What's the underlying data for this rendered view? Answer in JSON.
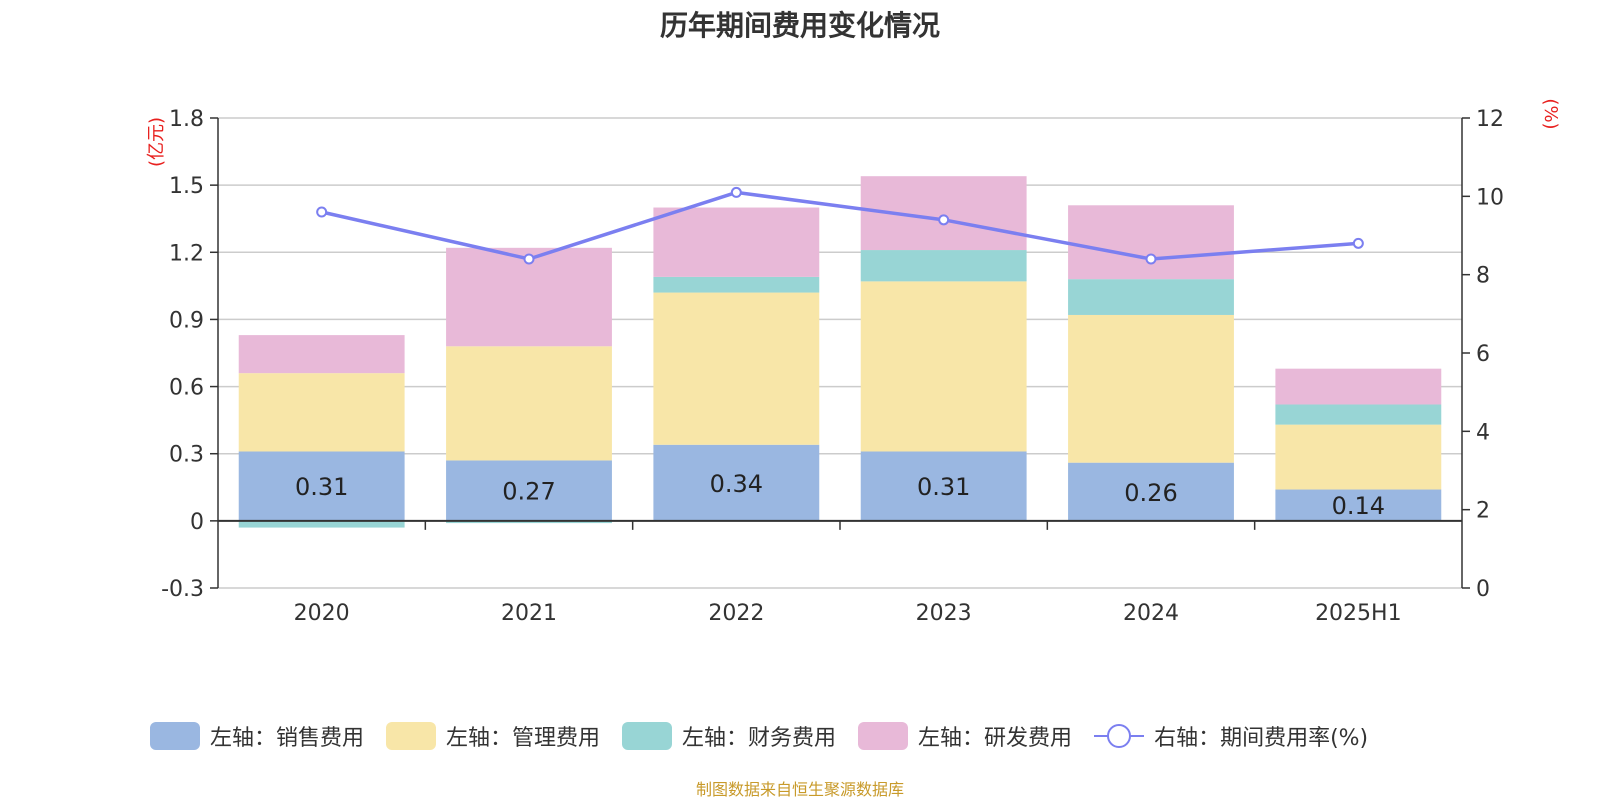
{
  "chart_data": {
    "type": "bar",
    "title": "历年期间费用变化情况",
    "categories": [
      "2020",
      "2021",
      "2022",
      "2023",
      "2024",
      "2025H1"
    ],
    "y_left": {
      "unit": "(亿元)",
      "ticks": [
        "1.8",
        "1.5",
        "1.2",
        "0.9",
        "0.6",
        "0.3",
        "0",
        "-0.3"
      ],
      "ylim": [
        -0.3,
        1.8
      ]
    },
    "y_right": {
      "unit": "(%)",
      "ticks": [
        "12",
        "10",
        "8",
        "6",
        "4",
        "2",
        "0"
      ],
      "ylim": [
        0,
        12
      ]
    },
    "series": [
      {
        "name": "左轴：销售费用",
        "type": "bar",
        "color": "#9ab7e1",
        "values": [
          0.31,
          0.27,
          0.34,
          0.31,
          0.26,
          0.14
        ],
        "labels": [
          "0.31",
          "0.27",
          "0.34",
          "0.31",
          "0.26",
          "0.14"
        ]
      },
      {
        "name": "左轴：管理费用",
        "type": "bar",
        "color": "#f8e6a8",
        "values": [
          0.35,
          0.51,
          0.68,
          0.76,
          0.66,
          0.29
        ]
      },
      {
        "name": "左轴：财务费用",
        "type": "bar",
        "color": "#98d5d5",
        "values": [
          -0.03,
          -0.01,
          0.07,
          0.14,
          0.16,
          0.09
        ]
      },
      {
        "name": "左轴：研发费用",
        "type": "bar",
        "color": "#e8b9d8",
        "values": [
          0.17,
          0.44,
          0.31,
          0.33,
          0.33,
          0.16
        ]
      },
      {
        "name": "右轴：期间费用率(%)",
        "type": "line",
        "axis": "right",
        "color": "#7b7ff0",
        "values": [
          9.6,
          8.4,
          10.1,
          9.4,
          8.4,
          8.8
        ]
      }
    ],
    "grid": true,
    "legend_position": "bottom"
  },
  "source_note": "制图数据来自恒生聚源数据库"
}
